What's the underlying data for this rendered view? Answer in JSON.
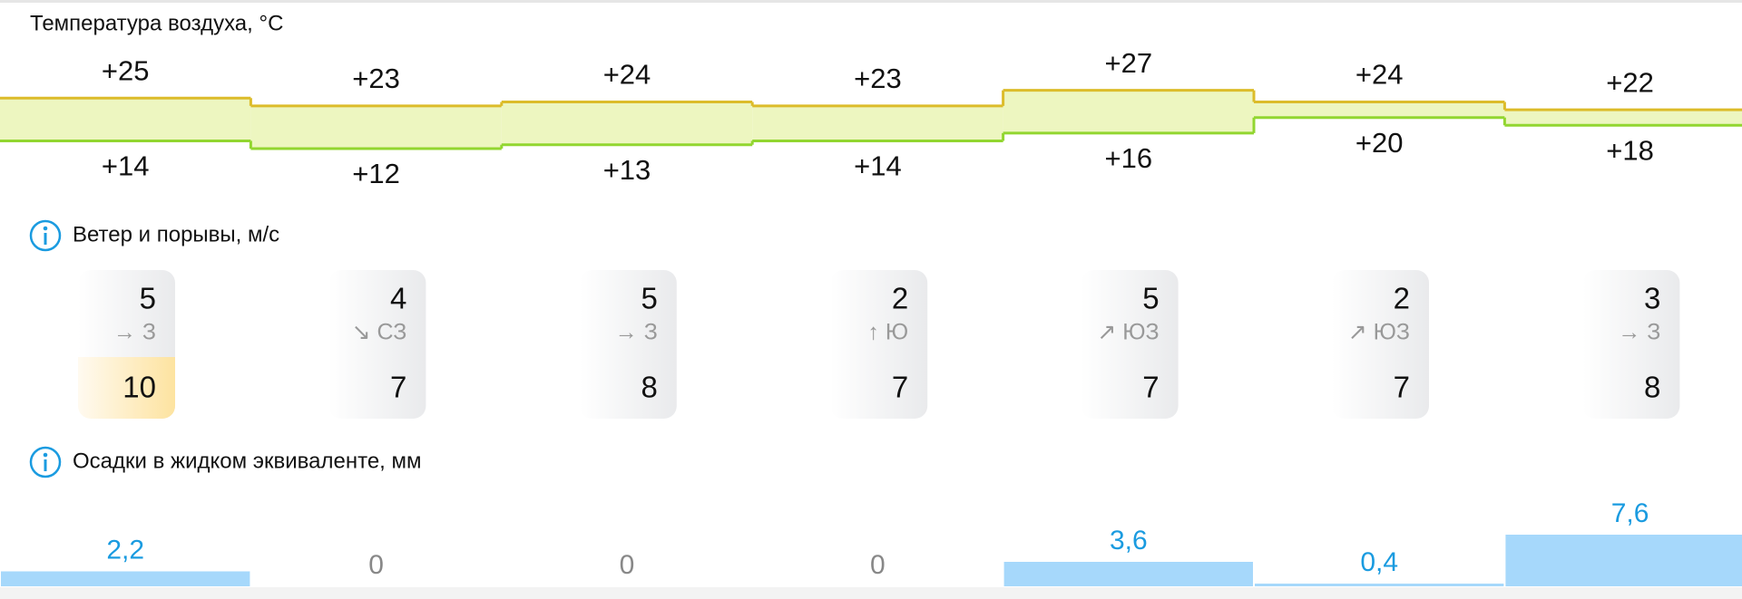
{
  "temperature": {
    "title": "Температура воздуха, °C",
    "max": [
      25,
      23,
      24,
      23,
      27,
      24,
      22
    ],
    "max_labels": [
      "+25",
      "+23",
      "+24",
      "+23",
      "+27",
      "+24",
      "+22"
    ],
    "min": [
      14,
      12,
      13,
      14,
      16,
      20,
      18
    ],
    "min_labels": [
      "+14",
      "+12",
      "+13",
      "+14",
      "+16",
      "+20",
      "+18"
    ]
  },
  "wind": {
    "title": "Ветер и порывы, м/с",
    "speed": [
      5,
      4,
      5,
      2,
      5,
      2,
      3
    ],
    "direction": [
      "→ З",
      "↘ СЗ",
      "→ З",
      "↑ Ю",
      "↗ ЮЗ",
      "↗ ЮЗ",
      "→ З"
    ],
    "gust": [
      10,
      7,
      8,
      7,
      7,
      7,
      8
    ]
  },
  "precipitation": {
    "title": "Осадки в жидком эквиваленте, мм",
    "values": [
      2.2,
      0,
      0,
      0,
      3.6,
      0.4,
      7.6
    ],
    "value_labels": [
      "2,2",
      "0",
      "0",
      "0",
      "3,6",
      "0,4",
      "7,6"
    ]
  }
}
